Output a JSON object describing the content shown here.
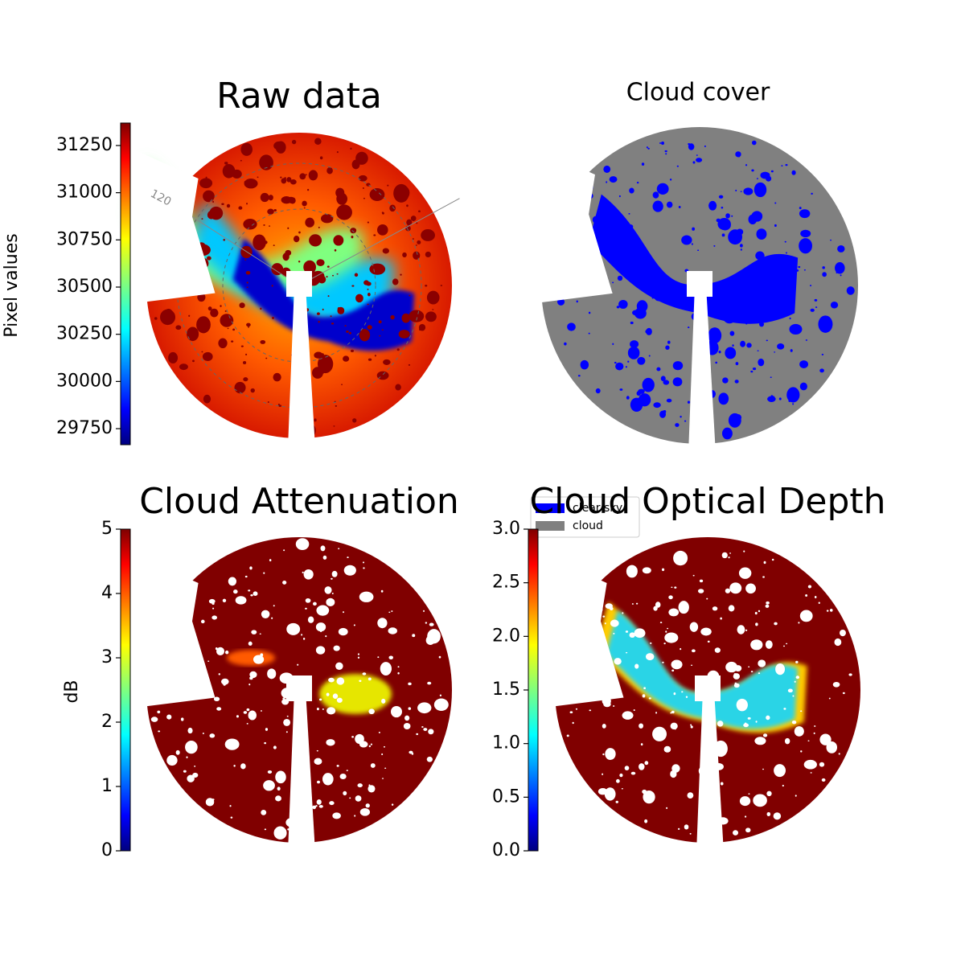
{
  "chart_data": [
    {
      "type": "image",
      "title": "Raw data",
      "colormap": "jet",
      "colorbar": {
        "label": "Pixel values",
        "lim": [
          29665,
          31369
        ],
        "ticks": [
          29750,
          30000,
          30250,
          30500,
          30750,
          31000,
          31250
        ]
      },
      "annotations": [
        "120"
      ]
    },
    {
      "type": "image",
      "title": "Cloud cover",
      "series": [
        {
          "name": "clear sky",
          "color": "#0000ff"
        },
        {
          "name": "cloud",
          "color": "#808080"
        }
      ]
    },
    {
      "type": "image",
      "title": "Cloud Attenuation",
      "colormap": "jet",
      "colorbar": {
        "label": "dB",
        "lim": [
          0,
          5
        ],
        "ticks": [
          0,
          1,
          2,
          3,
          4,
          5
        ]
      }
    },
    {
      "type": "image",
      "title": "Cloud Optical Depth",
      "colormap": "jet",
      "colorbar": {
        "lim": [
          0,
          3
        ],
        "ticks": [
          {
            "value": 0,
            "label": "0.0"
          },
          0.5,
          {
            "value": 1,
            "label": "1.0"
          },
          1.5,
          {
            "value": 2,
            "label": "2.0"
          },
          2.5,
          {
            "value": 3,
            "label": "3.0"
          }
        ]
      }
    }
  ]
}
